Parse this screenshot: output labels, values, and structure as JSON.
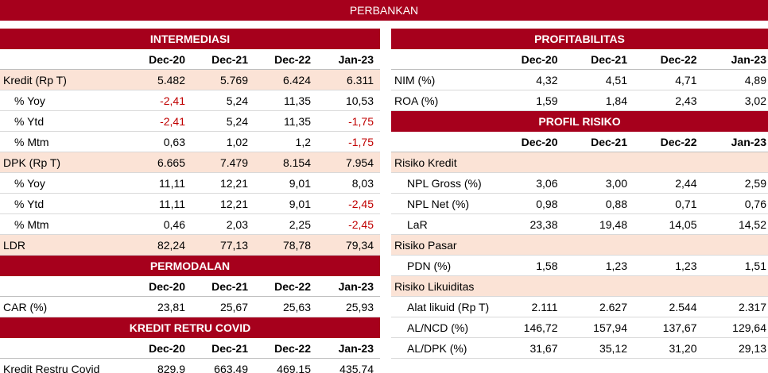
{
  "banner": {
    "title": "PERBANKAN"
  },
  "intermediasi": {
    "title": "INTERMEDIASI",
    "columns": [
      "Dec-20",
      "Dec-21",
      "Dec-22",
      "Jan-23"
    ],
    "rows": [
      {
        "label": "Kredit (Rp T)",
        "values": [
          "5.482",
          "5.769",
          "6.424",
          "6.311"
        ]
      },
      {
        "label": "% Yoy",
        "values": [
          "-2,41",
          "5,24",
          "11,35",
          "10,53"
        ]
      },
      {
        "label": "% Ytd",
        "values": [
          "-2,41",
          "5,24",
          "11,35",
          "-1,75"
        ]
      },
      {
        "label": "% Mtm",
        "values": [
          "0,63",
          "1,02",
          "1,2",
          "-1,75"
        ]
      },
      {
        "label": "DPK (Rp T)",
        "values": [
          "6.665",
          "7.479",
          "8.154",
          "7.954"
        ]
      },
      {
        "label": "% Yoy",
        "values": [
          "11,11",
          "12,21",
          "9,01",
          "8,03"
        ]
      },
      {
        "label": "% Ytd",
        "values": [
          "11,11",
          "12,21",
          "9,01",
          "-2,45"
        ]
      },
      {
        "label": "% Mtm",
        "values": [
          "0,46",
          "2,03",
          "2,25",
          "-2,45"
        ]
      },
      {
        "label": "LDR",
        "values": [
          "82,24",
          "77,13",
          "78,78",
          "79,34"
        ]
      }
    ]
  },
  "permodalan": {
    "title": "PERMODALAN",
    "columns": [
      "Dec-20",
      "Dec-21",
      "Dec-22",
      "Jan-23"
    ],
    "rows": [
      {
        "label": "CAR (%)",
        "values": [
          "23,81",
          "25,67",
          "25,63",
          "25,93"
        ]
      }
    ]
  },
  "kredit_restru": {
    "title": "KREDIT RETRU COVID",
    "columns": [
      "Dec-20",
      "Dec-21",
      "Dec-22",
      "Jan-23"
    ],
    "rows": [
      {
        "label": "Kredit Restru Covid",
        "values": [
          "829,9",
          "663,49",
          "469,15",
          "435,74"
        ]
      }
    ]
  },
  "profitabilitas": {
    "title": "PROFITABILITAS",
    "columns": [
      "Dec-20",
      "Dec-21",
      "Dec-22",
      "Jan-23"
    ],
    "rows": [
      {
        "label": "NIM (%)",
        "values": [
          "4,32",
          "4,51",
          "4,71",
          "4,89"
        ]
      },
      {
        "label": "ROA (%)",
        "values": [
          "1,59",
          "1,84",
          "2,43",
          "3,02"
        ]
      }
    ]
  },
  "profil_risiko": {
    "title": "PROFIL RISIKO",
    "columns": [
      "Dec-20",
      "Dec-21",
      "Dec-22",
      "Jan-23"
    ],
    "kredit": {
      "label": "Risiko Kredit",
      "rows": [
        {
          "label": "NPL Gross (%)",
          "values": [
            "3,06",
            "3,00",
            "2,44",
            "2,59"
          ]
        },
        {
          "label": "NPL Net (%)",
          "values": [
            "0,98",
            "0,88",
            "0,71",
            "0,76"
          ]
        },
        {
          "label": "LaR",
          "values": [
            "23,38",
            "19,48",
            "14,05",
            "14,52"
          ]
        }
      ]
    },
    "pasar": {
      "label": "Risiko Pasar",
      "rows": [
        {
          "label": "PDN (%)",
          "values": [
            "1,58",
            "1,23",
            "1,23",
            "1,51"
          ]
        }
      ]
    },
    "likuiditas": {
      "label": "Risiko Likuiditas",
      "rows": [
        {
          "label": "Alat likuid (Rp T)",
          "values": [
            "2.111",
            "2.627",
            "2.544",
            "2.317"
          ]
        },
        {
          "label": "AL/NCD (%)",
          "values": [
            "146,72",
            "157,94",
            "137,67",
            "129,64"
          ]
        },
        {
          "label": "AL/DPK (%)",
          "values": [
            "31,67",
            "35,12",
            "31,20",
            "29,13"
          ]
        }
      ]
    }
  },
  "colors": {
    "header_bg": "#a6001c",
    "shade_bg": "#fbe3d6",
    "negative": "#c00000"
  }
}
